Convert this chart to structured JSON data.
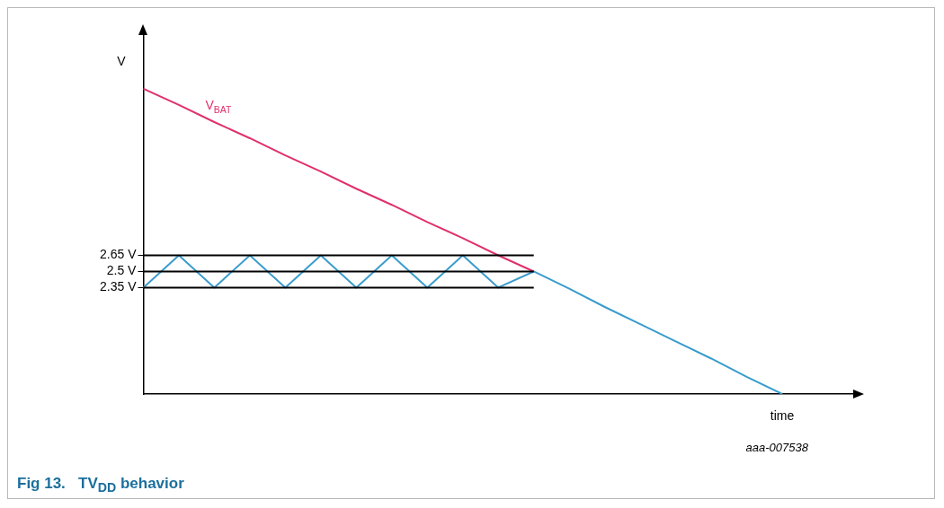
{
  "chart_data": {
    "type": "line",
    "title": "Fig 13.   TV$_{DD}$ behavior",
    "xlabel": "time",
    "ylabel": "V",
    "annotations": [
      "aaa-007538"
    ],
    "ylim": [
      1.36,
      4.7
    ],
    "categories": [
      null,
      null,
      null,
      null,
      null,
      null,
      null,
      null,
      null,
      null,
      null,
      null,
      null,
      null,
      null,
      null,
      null,
      null,
      null,
      null,
      null
    ],
    "yticks": [
      {
        "value": 2.35,
        "label": "2.35 V"
      },
      {
        "value": 2.5,
        "label": "2.5 V"
      },
      {
        "value": 2.65,
        "label": "2.65 V"
      }
    ],
    "tick_labels": "y",
    "marker": "none",
    "series": [
      {
        "color": "#000000",
        "values": [
          2.65,
          2.65,
          2.65,
          2.65,
          2.65,
          2.65,
          2.65,
          2.65,
          2.65,
          2.65,
          2.65,
          2.65,
          null,
          null,
          null,
          null,
          null,
          null,
          null,
          null,
          null
        ]
      },
      {
        "color": "#000000",
        "values": [
          2.5,
          2.5,
          2.5,
          2.5,
          2.5,
          2.5,
          2.5,
          2.5,
          2.5,
          2.5,
          2.5,
          2.5,
          null,
          null,
          null,
          null,
          null,
          null,
          null,
          null,
          null
        ]
      },
      {
        "color": "#000000",
        "values": [
          2.35,
          2.35,
          2.35,
          2.35,
          2.35,
          2.35,
          2.35,
          2.35,
          2.35,
          2.35,
          2.35,
          2.35,
          null,
          null,
          null,
          null,
          null,
          null,
          null,
          null,
          null
        ]
      },
      {
        "name": "V$_{BAT}$",
        "color": "#e0306a",
        "values": [
          4.2,
          4.05,
          3.89,
          3.74,
          3.58,
          3.43,
          3.27,
          3.12,
          2.96,
          2.81,
          2.65,
          2.5,
          null,
          null,
          null,
          null,
          null,
          null,
          null,
          null,
          null
        ]
      },
      {
        "color": "#3a9ccc",
        "values": [
          2.35,
          2.65,
          2.35,
          2.65,
          2.35,
          2.65,
          2.35,
          2.65,
          2.35,
          2.65,
          2.35,
          2.5,
          2.34,
          2.17,
          2.01,
          1.85,
          1.69,
          1.52,
          1.36,
          null,
          null
        ]
      }
    ]
  }
}
